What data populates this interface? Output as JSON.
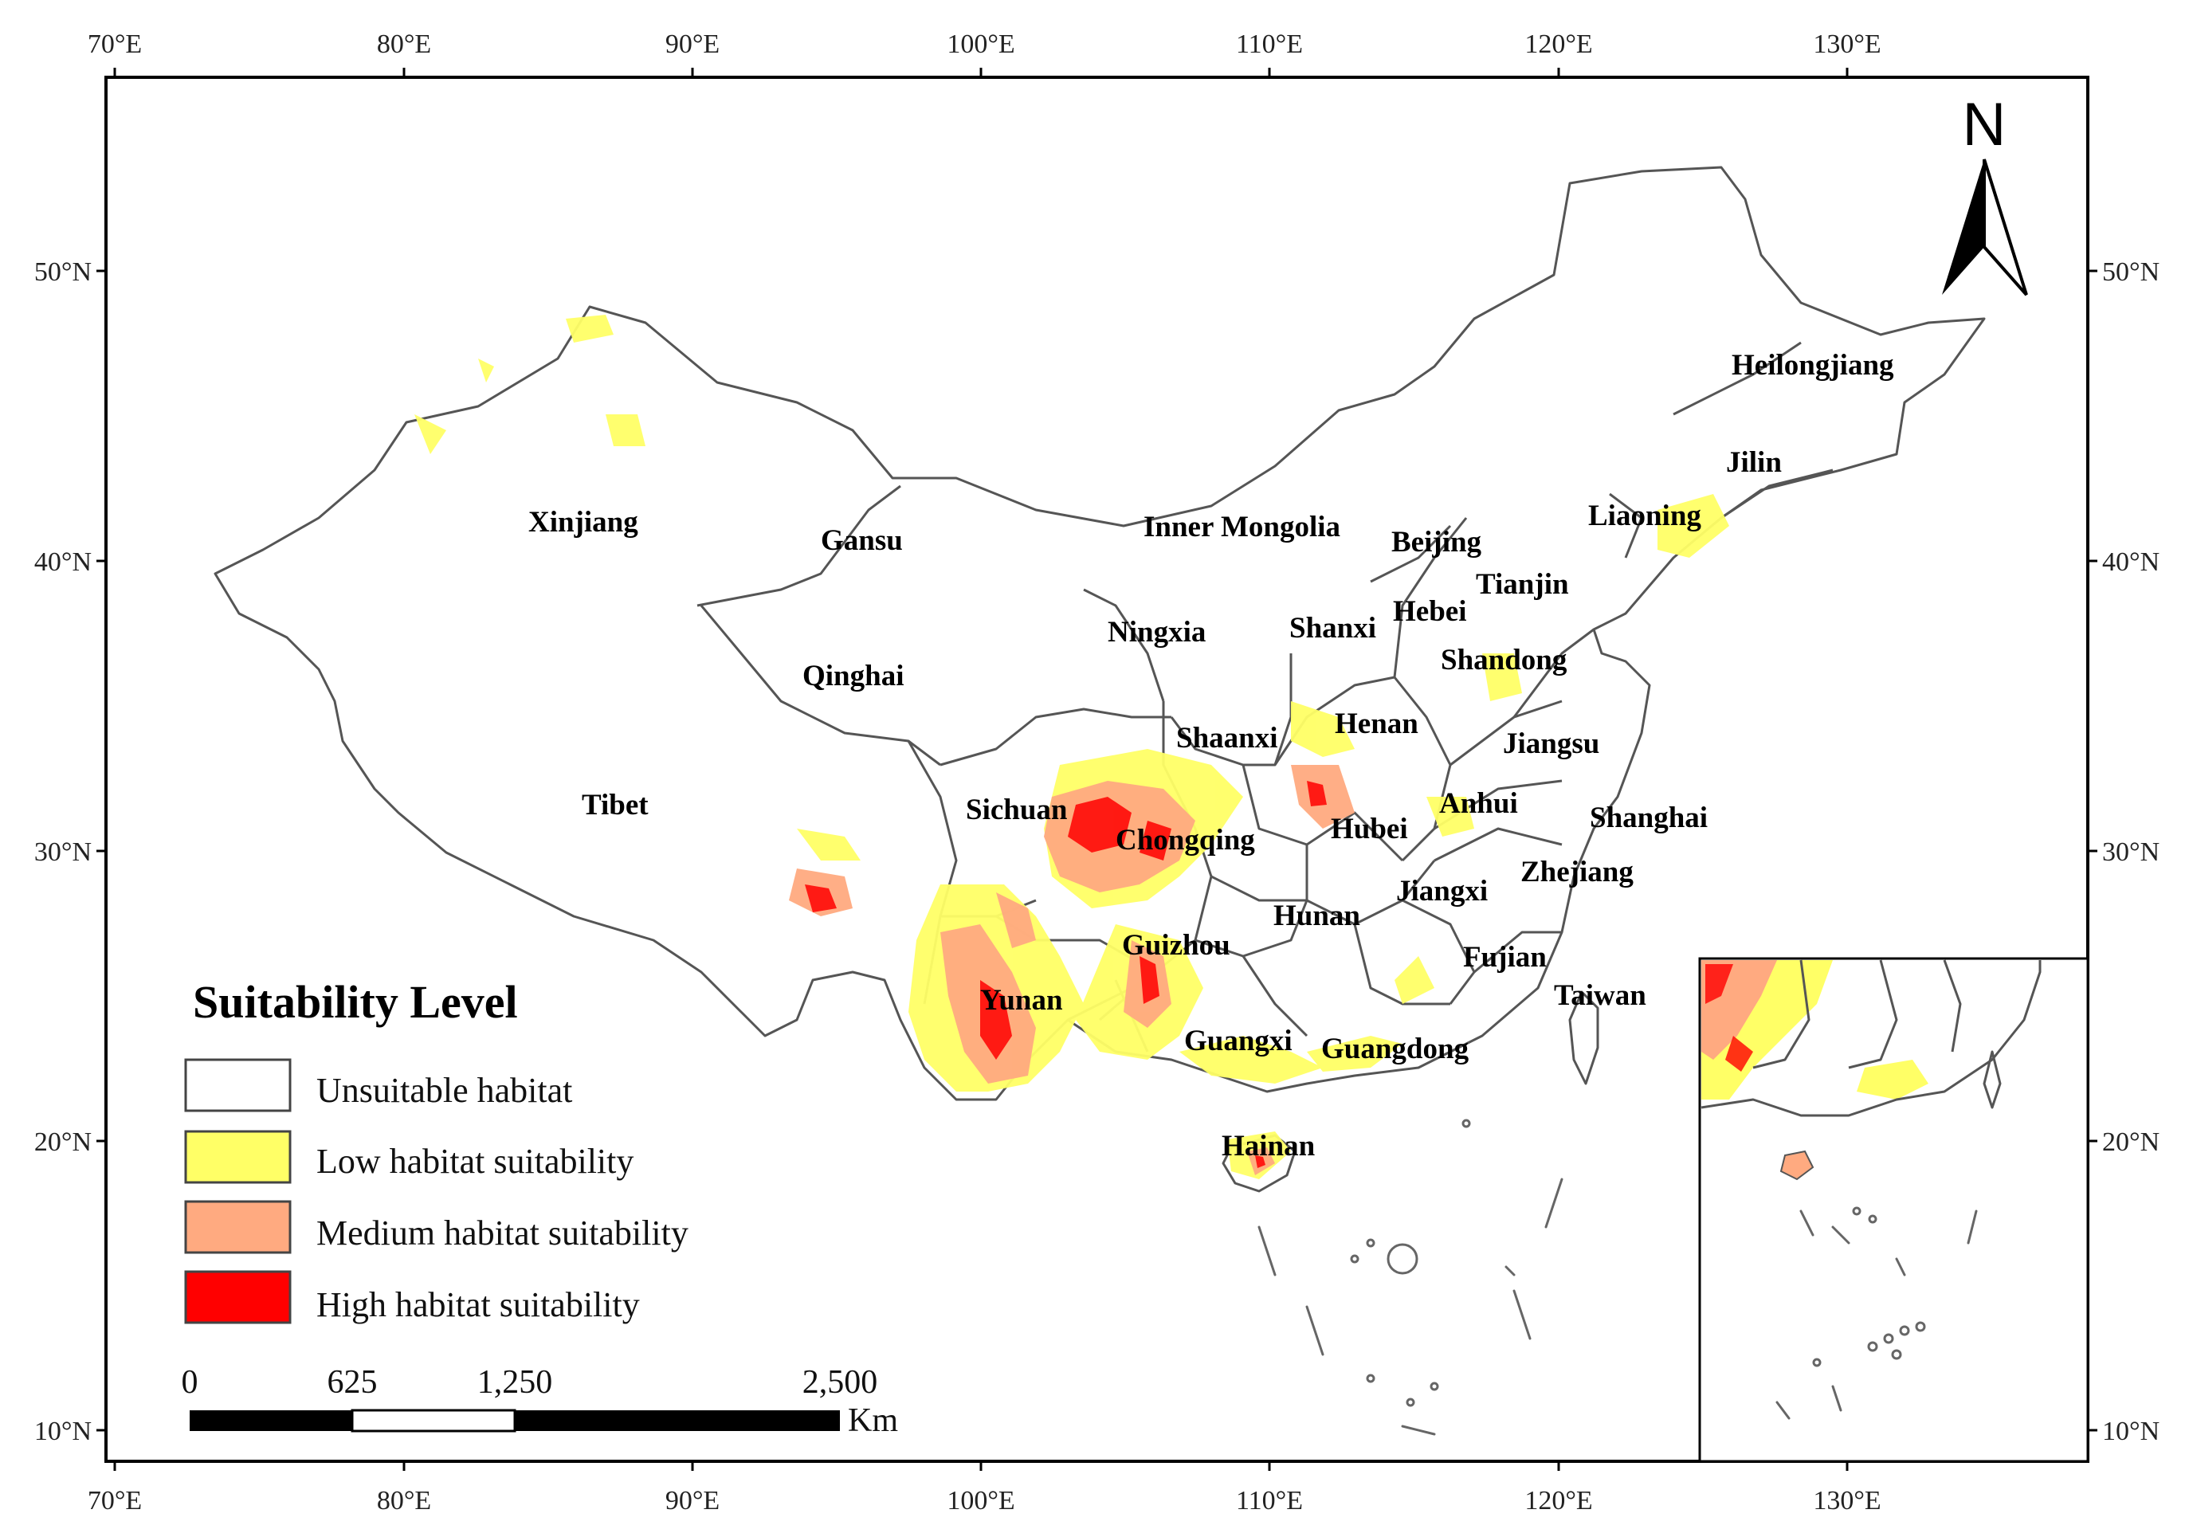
{
  "axes": {
    "top_lon": [
      "70°E",
      "80°E",
      "90°E",
      "100°E",
      "110°E",
      "120°E",
      "130°E"
    ],
    "bottom_lon": [
      "70°E",
      "80°E",
      "90°E",
      "100°E",
      "110°E",
      "120°E",
      "130°E"
    ],
    "left_lat": [
      "50°N",
      "40°N",
      "30°N",
      "20°N",
      "10°N"
    ],
    "right_lat": [
      "50°N",
      "40°N",
      "30°N",
      "20°N",
      "10°N"
    ]
  },
  "north_arrow": {
    "label": "N"
  },
  "provinces": [
    {
      "name": "Heilongjiang"
    },
    {
      "name": "Jilin"
    },
    {
      "name": "Liaoning"
    },
    {
      "name": "Xinjiang"
    },
    {
      "name": "Gansu"
    },
    {
      "name": "Inner Mongolia"
    },
    {
      "name": "Beijing"
    },
    {
      "name": "Tianjin"
    },
    {
      "name": "Hebei"
    },
    {
      "name": "Ningxia"
    },
    {
      "name": "Shanxi"
    },
    {
      "name": "Shandong"
    },
    {
      "name": "Qinghai"
    },
    {
      "name": "Shaanxi"
    },
    {
      "name": "Henan"
    },
    {
      "name": "Jiangsu"
    },
    {
      "name": "Tibet"
    },
    {
      "name": "Sichuan"
    },
    {
      "name": "Anhui"
    },
    {
      "name": "Shanghai"
    },
    {
      "name": "Chongqing"
    },
    {
      "name": "Hubei"
    },
    {
      "name": "Zhejiang"
    },
    {
      "name": "Jiangxi"
    },
    {
      "name": "Hunan"
    },
    {
      "name": "Guizhou"
    },
    {
      "name": "Fujian"
    },
    {
      "name": "Yunan"
    },
    {
      "name": "Taiwan"
    },
    {
      "name": "Guangxi"
    },
    {
      "name": "Guangdong"
    },
    {
      "name": "Hainan"
    }
  ],
  "legend": {
    "title": "Suitability Level",
    "items": [
      {
        "label": "Unsuitable habitat",
        "color": "#ffffff"
      },
      {
        "label": "Low habitat suitability",
        "color": "#ffff66"
      },
      {
        "label": "Medium habitat suitability",
        "color": "#ffaa80"
      },
      {
        "label": "High habitat suitability",
        "color": "#ff0000"
      }
    ]
  },
  "scale_bar": {
    "ticks": [
      "0",
      "625",
      "1,250",
      "2,500"
    ],
    "unit": "Km"
  }
}
